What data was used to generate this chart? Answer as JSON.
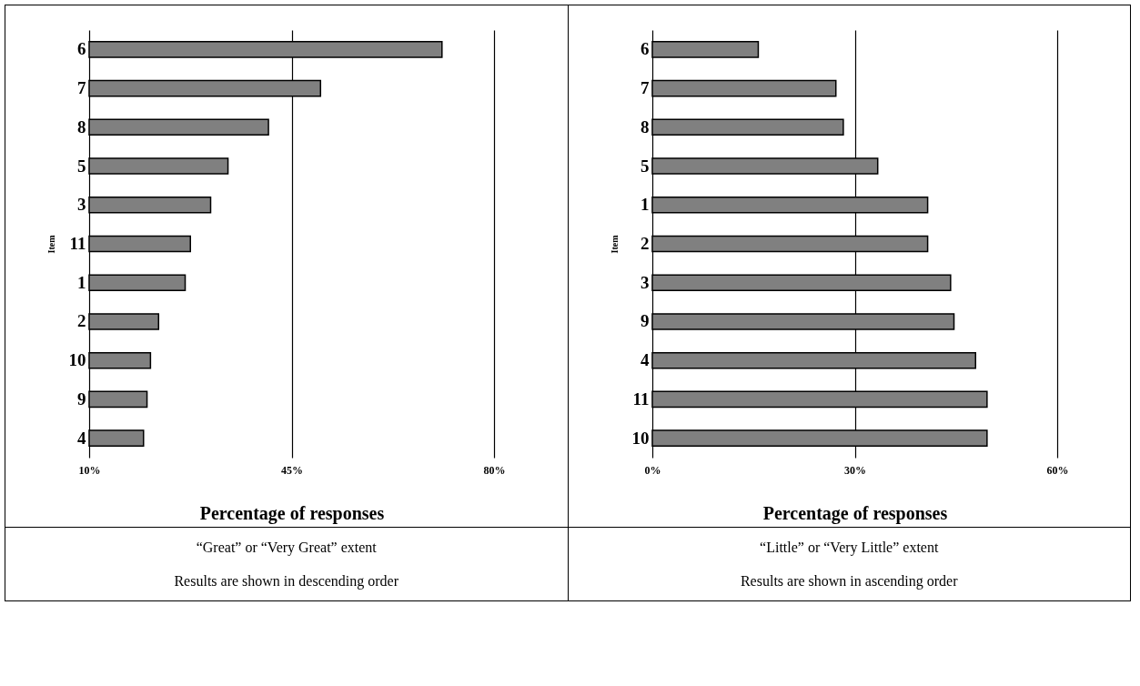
{
  "chart_data": [
    {
      "type": "bar",
      "orientation": "horizontal",
      "categories": [
        "6",
        "7",
        "8",
        "5",
        "3",
        "11",
        "1",
        "2",
        "10",
        "9",
        "4"
      ],
      "values": [
        71,
        50,
        41,
        34,
        31,
        27.5,
        26.6,
        22,
        20.6,
        20,
        19.4
      ],
      "color": "#808080",
      "xlim": [
        10,
        80
      ],
      "xticks": [
        {
          "value": 10,
          "label": "10%"
        },
        {
          "value": 45,
          "label": "45%"
        },
        {
          "value": 80,
          "label": "80%"
        }
      ],
      "grid": "x",
      "xlabel": "Percentage of responses",
      "ylabel": "Item",
      "annotations": [
        "“Great” or “Very Great” extent",
        "Results are shown in descending order"
      ]
    },
    {
      "type": "bar",
      "orientation": "horizontal",
      "categories": [
        "6",
        "7",
        "8",
        "5",
        "1",
        "2",
        "3",
        "9",
        "4",
        "11",
        "10"
      ],
      "values": [
        15.7,
        27.2,
        28.3,
        33.4,
        40.8,
        40.8,
        44.2,
        44.7,
        47.9,
        49.6,
        49.6
      ],
      "color": "#808080",
      "xlim": [
        0,
        60
      ],
      "xticks": [
        {
          "value": 0,
          "label": "0%"
        },
        {
          "value": 30,
          "label": "30%"
        },
        {
          "value": 60,
          "label": "60%"
        }
      ],
      "grid": "x",
      "xlabel": "Percentage of responses",
      "ylabel": "Item",
      "annotations": [
        "“Little” or “Very Little” extent",
        "Results are shown in ascending order"
      ]
    }
  ]
}
